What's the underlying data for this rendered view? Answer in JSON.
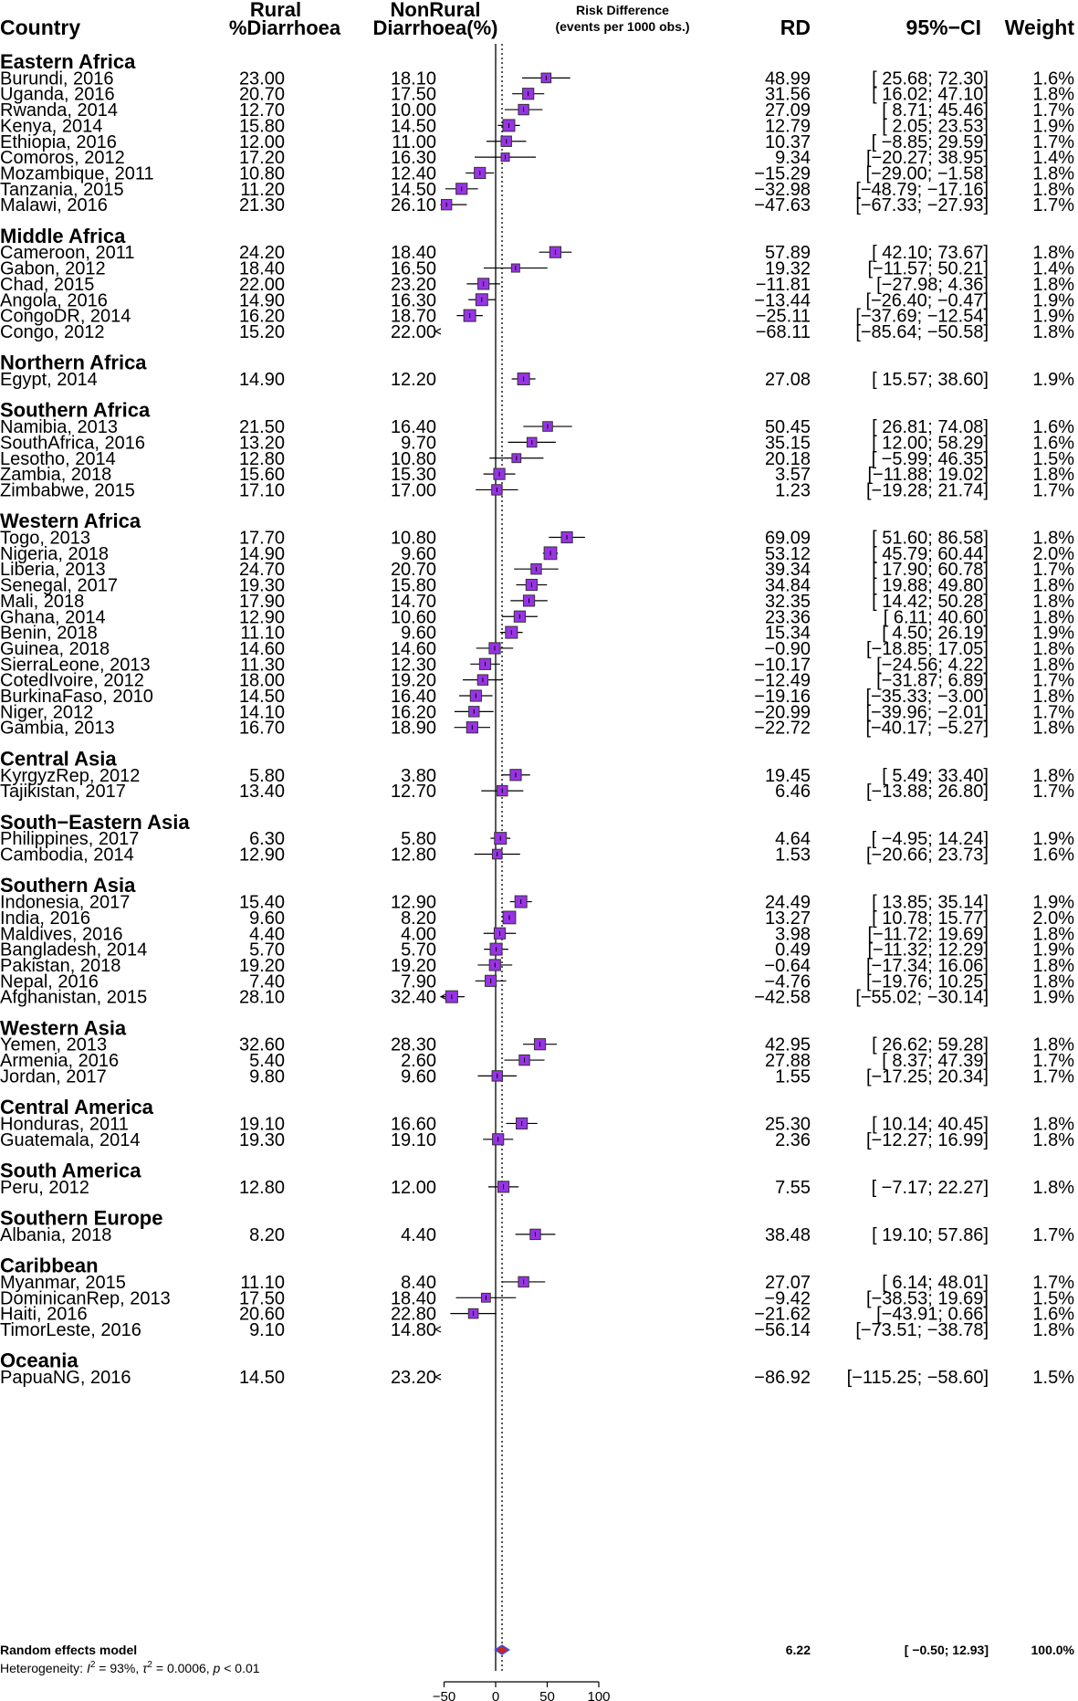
{
  "headers": {
    "country": "Country",
    "rural_line1": "Rural",
    "rural_line2": "%Diarrhoea",
    "nonrural_line1": "NonRural",
    "nonrural_line2": "Diarrhoea(%)",
    "rd_line1": "Risk Difference",
    "rd_line2": "(events per 1000 obs.)",
    "rd": "RD",
    "ci": "95%−CI",
    "weight": "Weight"
  },
  "colors": {
    "box_fill": "#9933e6",
    "box_stroke": "#333333",
    "diamond_fill": "#cc2222",
    "diamond_stroke": "#3355ee"
  },
  "chart_data": {
    "type": "forest",
    "xlim": [
      -50,
      100
    ],
    "xticks": [
      "−50",
      "0",
      "50",
      "100"
    ],
    "reference_line": 0,
    "dotted_line": 6.22,
    "groups": [
      {
        "name": "Eastern Africa",
        "studies": [
          {
            "label": "Burundi, 2016",
            "rural": "23.00",
            "nonrural": "18.10",
            "rd": 48.99,
            "lo": 25.68,
            "hi": 72.3,
            "rd_text": "48.99",
            "ci_text": "[ 25.68; 72.30]",
            "weight": "1.6%"
          },
          {
            "label": "Uganda, 2016",
            "rural": "20.70",
            "nonrural": "17.50",
            "rd": 31.56,
            "lo": 16.02,
            "hi": 47.1,
            "rd_text": "31.56",
            "ci_text": "[ 16.02; 47.10]",
            "weight": "1.8%"
          },
          {
            "label": "Rwanda, 2014",
            "rural": "12.70",
            "nonrural": "10.00",
            "rd": 27.09,
            "lo": 8.71,
            "hi": 45.46,
            "rd_text": "27.09",
            "ci_text": "[ 8.71; 45.46]",
            "weight": "1.7%"
          },
          {
            "label": "Kenya, 2014",
            "rural": "15.80",
            "nonrural": "14.50",
            "rd": 12.79,
            "lo": 2.05,
            "hi": 23.53,
            "rd_text": "12.79",
            "ci_text": "[ 2.05; 23.53]",
            "weight": "1.9%"
          },
          {
            "label": "Ethiopia, 2016",
            "rural": "12.00",
            "nonrural": "11.00",
            "rd": 10.37,
            "lo": -8.85,
            "hi": 29.59,
            "rd_text": "10.37",
            "ci_text": "[ −8.85; 29.59]",
            "weight": "1.7%"
          },
          {
            "label": "Comoros, 2012",
            "rural": "17.20",
            "nonrural": "16.30",
            "rd": 9.34,
            "lo": -20.27,
            "hi": 38.95,
            "rd_text": "9.34",
            "ci_text": "[−20.27; 38.95]",
            "weight": "1.4%"
          },
          {
            "label": "Mozambique, 2011",
            "rural": "10.80",
            "nonrural": "12.40",
            "rd": -15.29,
            "lo": -29.0,
            "hi": -1.58,
            "rd_text": "−15.29",
            "ci_text": "[−29.00; −1.58]",
            "weight": "1.8%"
          },
          {
            "label": "Tanzania, 2015",
            "rural": "11.20",
            "nonrural": "14.50",
            "rd": -32.98,
            "lo": -48.79,
            "hi": -17.16,
            "rd_text": "−32.98",
            "ci_text": "[−48.79; −17.16]",
            "weight": "1.8%"
          },
          {
            "label": "Malawi, 2016",
            "rural": "21.30",
            "nonrural": "26.10",
            "rd": -47.63,
            "lo": -67.33,
            "hi": -27.93,
            "rd_text": "−47.63",
            "ci_text": "[−67.33; −27.93]",
            "weight": "1.7%"
          }
        ]
      },
      {
        "name": "Middle Africa",
        "studies": [
          {
            "label": "Cameroon, 2011",
            "rural": "24.20",
            "nonrural": "18.40",
            "rd": 57.89,
            "lo": 42.1,
            "hi": 73.67,
            "rd_text": "57.89",
            "ci_text": "[ 42.10; 73.67]",
            "weight": "1.8%"
          },
          {
            "label": "Gabon, 2012",
            "rural": "18.40",
            "nonrural": "16.50",
            "rd": 19.32,
            "lo": -11.57,
            "hi": 50.21,
            "rd_text": "19.32",
            "ci_text": "[−11.57; 50.21]",
            "weight": "1.4%"
          },
          {
            "label": "Chad, 2015",
            "rural": "22.00",
            "nonrural": "23.20",
            "rd": -11.81,
            "lo": -27.98,
            "hi": 4.36,
            "rd_text": "−11.81",
            "ci_text": "[−27.98; 4.36]",
            "weight": "1.8%"
          },
          {
            "label": "Angola, 2016",
            "rural": "14.90",
            "nonrural": "16.30",
            "rd": -13.44,
            "lo": -26.4,
            "hi": -0.47,
            "rd_text": "−13.44",
            "ci_text": "[−26.40; −0.47]",
            "weight": "1.9%"
          },
          {
            "label": "CongoDR, 2014",
            "rural": "16.20",
            "nonrural": "18.70",
            "rd": -25.11,
            "lo": -37.69,
            "hi": -12.54,
            "rd_text": "−25.11",
            "ci_text": "[−37.69; −12.54]",
            "weight": "1.9%"
          },
          {
            "label": "Congo, 2012",
            "rural": "15.20",
            "nonrural": "22.00",
            "rd": -68.11,
            "lo": -85.64,
            "hi": -50.58,
            "rd_text": "−68.11",
            "ci_text": "[−85.64; −50.58]",
            "weight": "1.8%"
          }
        ]
      },
      {
        "name": "Northern Africa",
        "studies": [
          {
            "label": "Egypt, 2014",
            "rural": "14.90",
            "nonrural": "12.20",
            "rd": 27.08,
            "lo": 15.57,
            "hi": 38.6,
            "rd_text": "27.08",
            "ci_text": "[ 15.57; 38.60]",
            "weight": "1.9%"
          }
        ]
      },
      {
        "name": "Southern Africa",
        "studies": [
          {
            "label": "Namibia, 2013",
            "rural": "21.50",
            "nonrural": "16.40",
            "rd": 50.45,
            "lo": 26.81,
            "hi": 74.08,
            "rd_text": "50.45",
            "ci_text": "[ 26.81; 74.08]",
            "weight": "1.6%"
          },
          {
            "label": "SouthAfrica, 2016",
            "rural": "13.20",
            "nonrural": "9.70",
            "rd": 35.15,
            "lo": 12.0,
            "hi": 58.29,
            "rd_text": "35.15",
            "ci_text": "[ 12.00; 58.29]",
            "weight": "1.6%"
          },
          {
            "label": "Lesotho, 2014",
            "rural": "12.80",
            "nonrural": "10.80",
            "rd": 20.18,
            "lo": -5.99,
            "hi": 46.35,
            "rd_text": "20.18",
            "ci_text": "[ −5.99; 46.35]",
            "weight": "1.5%"
          },
          {
            "label": "Zambia, 2018",
            "rural": "15.60",
            "nonrural": "15.30",
            "rd": 3.57,
            "lo": -11.88,
            "hi": 19.02,
            "rd_text": "3.57",
            "ci_text": "[−11.88; 19.02]",
            "weight": "1.8%"
          },
          {
            "label": "Zimbabwe, 2015",
            "rural": "17.10",
            "nonrural": "17.00",
            "rd": 1.23,
            "lo": -19.28,
            "hi": 21.74,
            "rd_text": "1.23",
            "ci_text": "[−19.28; 21.74]",
            "weight": "1.7%"
          }
        ]
      },
      {
        "name": "Western Africa",
        "studies": [
          {
            "label": "Togo, 2013",
            "rural": "17.70",
            "nonrural": "10.80",
            "rd": 69.09,
            "lo": 51.6,
            "hi": 86.58,
            "rd_text": "69.09",
            "ci_text": "[ 51.60; 86.58]",
            "weight": "1.8%"
          },
          {
            "label": "Nigeria, 2018",
            "rural": "14.90",
            "nonrural": "9.60",
            "rd": 53.12,
            "lo": 45.79,
            "hi": 60.44,
            "rd_text": "53.12",
            "ci_text": "[ 45.79; 60.44]",
            "weight": "2.0%"
          },
          {
            "label": "Liberia, 2013",
            "rural": "24.70",
            "nonrural": "20.70",
            "rd": 39.34,
            "lo": 17.9,
            "hi": 60.78,
            "rd_text": "39.34",
            "ci_text": "[ 17.90; 60.78]",
            "weight": "1.7%"
          },
          {
            "label": "Senegal, 2017",
            "rural": "19.30",
            "nonrural": "15.80",
            "rd": 34.84,
            "lo": 19.88,
            "hi": 49.8,
            "rd_text": "34.84",
            "ci_text": "[ 19.88; 49.80]",
            "weight": "1.8%"
          },
          {
            "label": "Mali, 2018",
            "rural": "17.90",
            "nonrural": "14.70",
            "rd": 32.35,
            "lo": 14.42,
            "hi": 50.28,
            "rd_text": "32.35",
            "ci_text": "[ 14.42; 50.28]",
            "weight": "1.8%"
          },
          {
            "label": "Ghana, 2014",
            "rural": "12.90",
            "nonrural": "10.60",
            "rd": 23.36,
            "lo": 6.11,
            "hi": 40.6,
            "rd_text": "23.36",
            "ci_text": "[ 6.11; 40.60]",
            "weight": "1.8%"
          },
          {
            "label": "Benin, 2018",
            "rural": "11.10",
            "nonrural": "9.60",
            "rd": 15.34,
            "lo": 4.5,
            "hi": 26.19,
            "rd_text": "15.34",
            "ci_text": "[ 4.50; 26.19]",
            "weight": "1.9%"
          },
          {
            "label": "Guinea, 2018",
            "rural": "14.60",
            "nonrural": "14.60",
            "rd": -0.9,
            "lo": -18.85,
            "hi": 17.05,
            "rd_text": "−0.90",
            "ci_text": "[−18.85; 17.05]",
            "weight": "1.8%"
          },
          {
            "label": "SierraLeone, 2013",
            "rural": "11.30",
            "nonrural": "12.30",
            "rd": -10.17,
            "lo": -24.56,
            "hi": 4.22,
            "rd_text": "−10.17",
            "ci_text": "[−24.56; 4.22]",
            "weight": "1.8%"
          },
          {
            "label": "CotedIvoire, 2012",
            "rural": "18.00",
            "nonrural": "19.20",
            "rd": -12.49,
            "lo": -31.87,
            "hi": 6.89,
            "rd_text": "−12.49",
            "ci_text": "[−31.87; 6.89]",
            "weight": "1.7%"
          },
          {
            "label": "BurkinaFaso, 2010",
            "rural": "14.50",
            "nonrural": "16.40",
            "rd": -19.16,
            "lo": -35.33,
            "hi": -3.0,
            "rd_text": "−19.16",
            "ci_text": "[−35.33; −3.00]",
            "weight": "1.8%"
          },
          {
            "label": "Niger, 2012",
            "rural": "14.10",
            "nonrural": "16.20",
            "rd": -20.99,
            "lo": -39.96,
            "hi": -2.01,
            "rd_text": "−20.99",
            "ci_text": "[−39.96; −2.01]",
            "weight": "1.7%"
          },
          {
            "label": "Gambia, 2013",
            "rural": "16.70",
            "nonrural": "18.90",
            "rd": -22.72,
            "lo": -40.17,
            "hi": -5.27,
            "rd_text": "−22.72",
            "ci_text": "[−40.17; −5.27]",
            "weight": "1.8%"
          }
        ]
      },
      {
        "name": "Central Asia",
        "studies": [
          {
            "label": "KyrgyzRep, 2012",
            "rural": "5.80",
            "nonrural": "3.80",
            "rd": 19.45,
            "lo": 5.49,
            "hi": 33.4,
            "rd_text": "19.45",
            "ci_text": "[ 5.49; 33.40]",
            "weight": "1.8%"
          },
          {
            "label": "Tajikistan, 2017",
            "rural": "13.40",
            "nonrural": "12.70",
            "rd": 6.46,
            "lo": -13.88,
            "hi": 26.8,
            "rd_text": "6.46",
            "ci_text": "[−13.88; 26.80]",
            "weight": "1.7%"
          }
        ]
      },
      {
        "name": "South−Eastern Asia",
        "studies": [
          {
            "label": "Philippines, 2017",
            "rural": "6.30",
            "nonrural": "5.80",
            "rd": 4.64,
            "lo": -4.95,
            "hi": 14.24,
            "rd_text": "4.64",
            "ci_text": "[ −4.95; 14.24]",
            "weight": "1.9%"
          },
          {
            "label": "Cambodia, 2014",
            "rural": "12.90",
            "nonrural": "12.80",
            "rd": 1.53,
            "lo": -20.66,
            "hi": 23.73,
            "rd_text": "1.53",
            "ci_text": "[−20.66; 23.73]",
            "weight": "1.6%"
          }
        ]
      },
      {
        "name": "Southern Asia",
        "studies": [
          {
            "label": "Indonesia, 2017",
            "rural": "15.40",
            "nonrural": "12.90",
            "rd": 24.49,
            "lo": 13.85,
            "hi": 35.14,
            "rd_text": "24.49",
            "ci_text": "[ 13.85; 35.14]",
            "weight": "1.9%"
          },
          {
            "label": "India, 2016",
            "rural": "9.60",
            "nonrural": "8.20",
            "rd": 13.27,
            "lo": 10.78,
            "hi": 15.77,
            "rd_text": "13.27",
            "ci_text": "[ 10.78; 15.77]",
            "weight": "2.0%"
          },
          {
            "label": "Maldives, 2016",
            "rural": "4.40",
            "nonrural": "4.00",
            "rd": 3.98,
            "lo": -11.72,
            "hi": 19.69,
            "rd_text": "3.98",
            "ci_text": "[−11.72; 19.69]",
            "weight": "1.8%"
          },
          {
            "label": "Bangladesh, 2014",
            "rural": "5.70",
            "nonrural": "5.70",
            "rd": 0.49,
            "lo": -11.32,
            "hi": 12.29,
            "rd_text": "0.49",
            "ci_text": "[−11.32; 12.29]",
            "weight": "1.9%"
          },
          {
            "label": "Pakistan, 2018",
            "rural": "19.20",
            "nonrural": "19.20",
            "rd": -0.64,
            "lo": -17.34,
            "hi": 16.06,
            "rd_text": "−0.64",
            "ci_text": "[−17.34; 16.06]",
            "weight": "1.8%"
          },
          {
            "label": "Nepal, 2016",
            "rural": "7.40",
            "nonrural": "7.90",
            "rd": -4.76,
            "lo": -19.76,
            "hi": 10.25,
            "rd_text": "−4.76",
            "ci_text": "[−19.76; 10.25]",
            "weight": "1.8%"
          },
          {
            "label": "Afghanistan, 2015",
            "rural": "28.10",
            "nonrural": "32.40",
            "rd": -42.58,
            "lo": -55.02,
            "hi": -30.14,
            "rd_text": "−42.58",
            "ci_text": "[−55.02; −30.14]",
            "weight": "1.9%"
          }
        ]
      },
      {
        "name": "Western Asia",
        "studies": [
          {
            "label": "Yemen, 2013",
            "rural": "32.60",
            "nonrural": "28.30",
            "rd": 42.95,
            "lo": 26.62,
            "hi": 59.28,
            "rd_text": "42.95",
            "ci_text": "[ 26.62; 59.28]",
            "weight": "1.8%"
          },
          {
            "label": "Armenia, 2016",
            "rural": "5.40",
            "nonrural": "2.60",
            "rd": 27.88,
            "lo": 8.37,
            "hi": 47.39,
            "rd_text": "27.88",
            "ci_text": "[ 8.37; 47.39]",
            "weight": "1.7%"
          },
          {
            "label": "Jordan, 2017",
            "rural": "9.80",
            "nonrural": "9.60",
            "rd": 1.55,
            "lo": -17.25,
            "hi": 20.34,
            "rd_text": "1.55",
            "ci_text": "[−17.25; 20.34]",
            "weight": "1.7%"
          }
        ]
      },
      {
        "name": "Central America",
        "studies": [
          {
            "label": "Honduras, 2011",
            "rural": "19.10",
            "nonrural": "16.60",
            "rd": 25.3,
            "lo": 10.14,
            "hi": 40.45,
            "rd_text": "25.30",
            "ci_text": "[ 10.14; 40.45]",
            "weight": "1.8%"
          },
          {
            "label": "Guatemala, 2014",
            "rural": "19.30",
            "nonrural": "19.10",
            "rd": 2.36,
            "lo": -12.27,
            "hi": 16.99,
            "rd_text": "2.36",
            "ci_text": "[−12.27; 16.99]",
            "weight": "1.8%"
          }
        ]
      },
      {
        "name": "South America",
        "studies": [
          {
            "label": "Peru, 2012",
            "rural": "12.80",
            "nonrural": "12.00",
            "rd": 7.55,
            "lo": -7.17,
            "hi": 22.27,
            "rd_text": "7.55",
            "ci_text": "[ −7.17; 22.27]",
            "weight": "1.8%"
          }
        ]
      },
      {
        "name": "Southern Europe",
        "studies": [
          {
            "label": "Albania, 2018",
            "rural": "8.20",
            "nonrural": "4.40",
            "rd": 38.48,
            "lo": 19.1,
            "hi": 57.86,
            "rd_text": "38.48",
            "ci_text": "[ 19.10; 57.86]",
            "weight": "1.7%"
          }
        ]
      },
      {
        "name": "Caribbean",
        "studies": [
          {
            "label": "Myanmar, 2015",
            "rural": "11.10",
            "nonrural": "8.40",
            "rd": 27.07,
            "lo": 6.14,
            "hi": 48.01,
            "rd_text": "27.07",
            "ci_text": "[ 6.14; 48.01]",
            "weight": "1.7%"
          },
          {
            "label": "DominicanRep, 2013",
            "rural": "17.50",
            "nonrural": "18.40",
            "rd": -9.42,
            "lo": -38.53,
            "hi": 19.69,
            "rd_text": "−9.42",
            "ci_text": "[−38.53; 19.69]",
            "weight": "1.5%"
          },
          {
            "label": "Haiti, 2016",
            "rural": "20.60",
            "nonrural": "22.80",
            "rd": -21.62,
            "lo": -43.91,
            "hi": 0.66,
            "rd_text": "−21.62",
            "ci_text": "[−43.91; 0.66]",
            "weight": "1.6%"
          },
          {
            "label": "TimorLeste, 2016",
            "rural": "9.10",
            "nonrural": "14.80",
            "rd": -56.14,
            "lo": -73.51,
            "hi": -38.78,
            "rd_text": "−56.14",
            "ci_text": "[−73.51; −38.78]",
            "weight": "1.8%"
          }
        ]
      },
      {
        "name": "Oceania",
        "studies": [
          {
            "label": "PapuaNG, 2016",
            "rural": "14.50",
            "nonrural": "23.20",
            "rd": -86.92,
            "lo": -115.25,
            "hi": -58.6,
            "rd_text": "−86.92",
            "ci_text": "[−115.25; −58.60]",
            "weight": "1.5%"
          }
        ]
      }
    ],
    "summary": {
      "label": "Random effects model",
      "rd": 6.22,
      "lo": -0.5,
      "hi": 12.93,
      "rd_text": "6.22",
      "ci_text": "[ −0.50; 12.93]",
      "weight": "100.0%"
    },
    "heterogeneity": {
      "prefix": "Heterogeneity: ",
      "i2_symbol": "I",
      "i2_value": " = 93%, ",
      "tau2_symbol": "τ",
      "tau2_value": " = 0.0006, ",
      "p_symbol": "p",
      "p_value": " < 0.01"
    }
  }
}
